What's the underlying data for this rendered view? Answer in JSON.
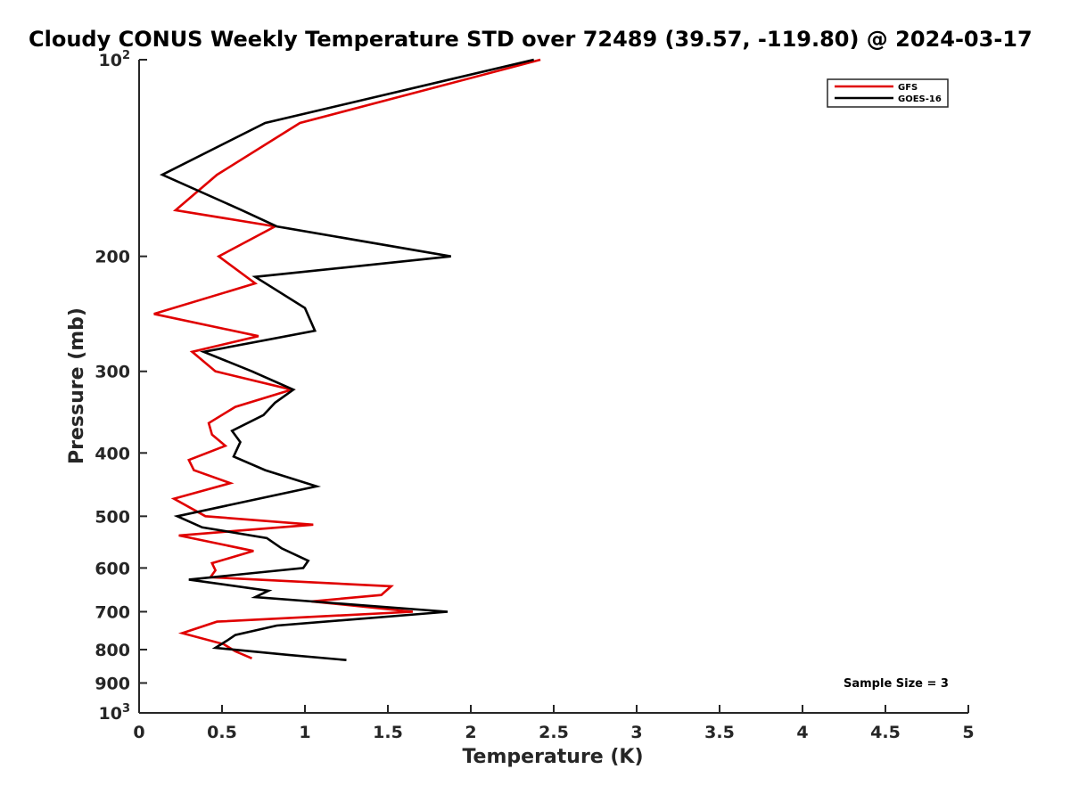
{
  "chart_data": {
    "type": "line",
    "title": "Cloudy CONUS Weekly Temperature STD over 72489 (39.57, -119.80) @ 2024-03-17",
    "xlabel": "Temperature (K)",
    "ylabel": "Pressure (mb)",
    "xlim": [
      0,
      5
    ],
    "ylim": [
      100,
      1000
    ],
    "yscale": "log",
    "yreversed": true,
    "xticks": [
      "0",
      "0.5",
      "1",
      "1.5",
      "2",
      "2.5",
      "3",
      "3.5",
      "4",
      "4.5",
      "5"
    ],
    "yticks": [
      {
        "value": 100,
        "label": "10",
        "sup": "2"
      },
      {
        "value": 200,
        "label": "200",
        "sup": ""
      },
      {
        "value": 300,
        "label": "300",
        "sup": ""
      },
      {
        "value": 400,
        "label": "400",
        "sup": ""
      },
      {
        "value": 500,
        "label": "500",
        "sup": ""
      },
      {
        "value": 600,
        "label": "600",
        "sup": ""
      },
      {
        "value": 700,
        "label": "700",
        "sup": ""
      },
      {
        "value": 800,
        "label": "800",
        "sup": ""
      },
      {
        "value": 900,
        "label": "900",
        "sup": ""
      },
      {
        "value": 1000,
        "label": "10",
        "sup": "3"
      }
    ],
    "legend_position": "top-right",
    "annotation": "Sample Size = 3",
    "series": [
      {
        "name": "GFS",
        "color": "#e00000",
        "points": [
          [
            2.42,
            100
          ],
          [
            0.97,
            125
          ],
          [
            0.47,
            150
          ],
          [
            0.22,
            170
          ],
          [
            0.82,
            180
          ],
          [
            0.48,
            200
          ],
          [
            0.7,
            220
          ],
          [
            0.09,
            245
          ],
          [
            0.72,
            265
          ],
          [
            0.32,
            280
          ],
          [
            0.46,
            300
          ],
          [
            0.92,
            320
          ],
          [
            0.58,
            340
          ],
          [
            0.42,
            360
          ],
          [
            0.44,
            375
          ],
          [
            0.52,
            390
          ],
          [
            0.3,
            410
          ],
          [
            0.33,
            425
          ],
          [
            0.55,
            445
          ],
          [
            0.21,
            470
          ],
          [
            0.4,
            500
          ],
          [
            1.05,
            515
          ],
          [
            0.24,
            535
          ],
          [
            0.69,
            565
          ],
          [
            0.44,
            590
          ],
          [
            0.46,
            605
          ],
          [
            0.43,
            620
          ],
          [
            1.52,
            640
          ],
          [
            1.46,
            660
          ],
          [
            1.04,
            675
          ],
          [
            1.65,
            700
          ],
          [
            0.47,
            725
          ],
          [
            0.26,
            755
          ],
          [
            0.51,
            785
          ],
          [
            0.58,
            805
          ],
          [
            0.68,
            825
          ]
        ]
      },
      {
        "name": "GOES-16",
        "color": "#000000",
        "points": [
          [
            2.38,
            100
          ],
          [
            0.76,
            125
          ],
          [
            0.14,
            150
          ],
          [
            0.62,
            170
          ],
          [
            0.83,
            180
          ],
          [
            1.88,
            200
          ],
          [
            0.7,
            215
          ],
          [
            1.0,
            240
          ],
          [
            1.06,
            260
          ],
          [
            0.39,
            280
          ],
          [
            0.68,
            300
          ],
          [
            0.93,
            320
          ],
          [
            0.82,
            335
          ],
          [
            0.75,
            350
          ],
          [
            0.56,
            370
          ],
          [
            0.61,
            385
          ],
          [
            0.57,
            405
          ],
          [
            0.76,
            425
          ],
          [
            1.07,
            450
          ],
          [
            0.23,
            500
          ],
          [
            0.38,
            520
          ],
          [
            0.77,
            540
          ],
          [
            0.86,
            560
          ],
          [
            1.02,
            585
          ],
          [
            0.99,
            600
          ],
          [
            0.3,
            625
          ],
          [
            0.78,
            650
          ],
          [
            0.7,
            665
          ],
          [
            1.86,
            700
          ],
          [
            0.83,
            735
          ],
          [
            0.58,
            760
          ],
          [
            0.53,
            775
          ],
          [
            0.46,
            795
          ],
          [
            0.9,
            815
          ],
          [
            1.25,
            830
          ]
        ]
      }
    ]
  }
}
